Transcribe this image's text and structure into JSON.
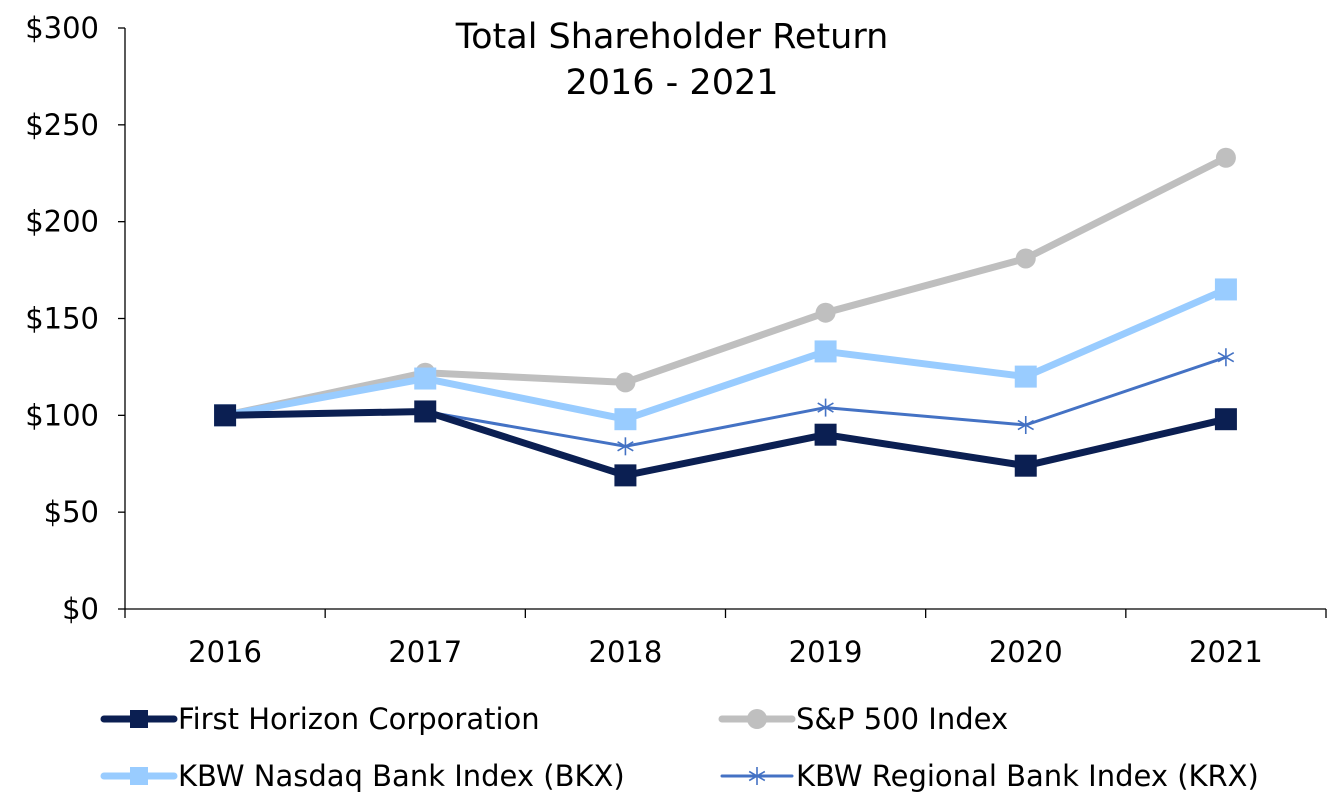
{
  "chart_data": {
    "type": "line",
    "title": [
      "Total Shareholder Return",
      "2016 - 2021"
    ],
    "xlabel": "",
    "ylabel": "",
    "categories": [
      "2016",
      "2017",
      "2018",
      "2019",
      "2020",
      "2021"
    ],
    "ylim": [
      0,
      300
    ],
    "yticks": [
      0,
      50,
      100,
      150,
      200,
      250,
      300
    ],
    "ytick_labels": [
      "$0",
      "$50",
      "$100",
      "$150",
      "$200",
      "$250",
      "$300"
    ],
    "grid": false,
    "legend_position": "bottom",
    "series": [
      {
        "name": "First Horizon Corporation",
        "values": [
          100,
          102,
          69,
          90,
          74,
          98
        ],
        "color": "#0b1f52",
        "marker": "square",
        "weight": "heavy"
      },
      {
        "name": "S&P 500 Index",
        "values": [
          100,
          122,
          117,
          153,
          181,
          233
        ],
        "color": "#bfbfbf",
        "marker": "circle",
        "weight": "heavy"
      },
      {
        "name": "KBW Nasdaq Bank Index (BKX)",
        "values": [
          100,
          119,
          98,
          133,
          120,
          165
        ],
        "color": "#99ccff",
        "marker": "square",
        "weight": "heavy"
      },
      {
        "name": "KBW Regional Bank Index (KRX)",
        "values": [
          100,
          102,
          84,
          104,
          95,
          130
        ],
        "color": "#4472c4",
        "marker": "asterisk",
        "weight": "light"
      }
    ]
  }
}
